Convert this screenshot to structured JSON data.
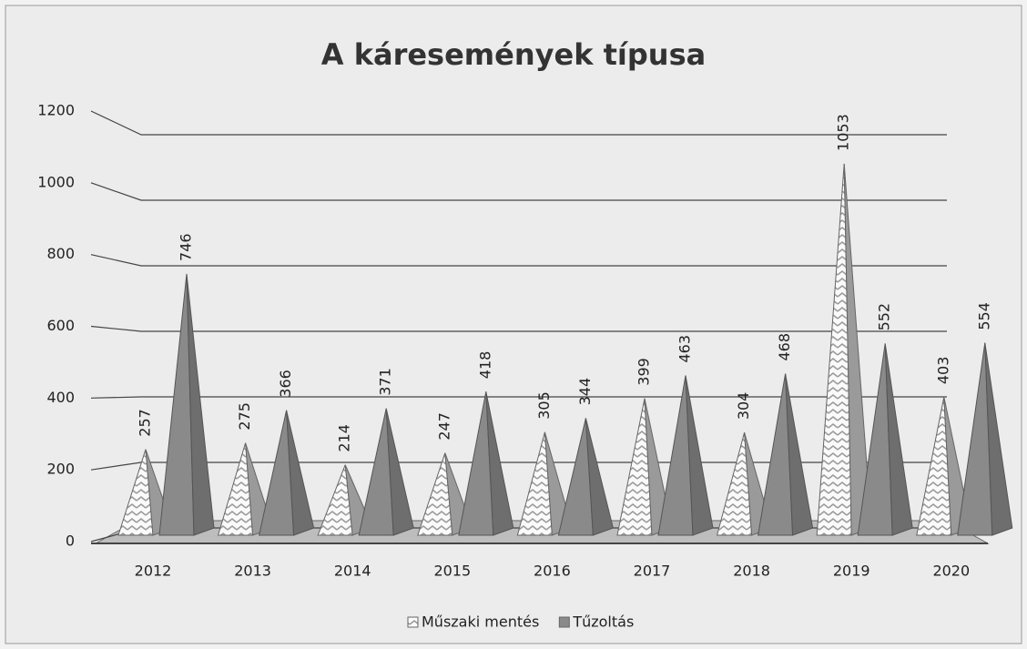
{
  "chart_data": {
    "type": "pyramid",
    "title": "A káresemények típusa",
    "categories": [
      "2012",
      "2013",
      "2014",
      "2015",
      "2016",
      "2017",
      "2018",
      "2019",
      "2020"
    ],
    "series": [
      {
        "name": "Műszaki mentés",
        "color": "#9a9a9a",
        "values": [
          257,
          275,
          214,
          247,
          305,
          399,
          304,
          1053,
          403
        ]
      },
      {
        "name": "Tűzoltás",
        "color": "#8a8a8a",
        "values": [
          746,
          366,
          371,
          418,
          344,
          463,
          468,
          552,
          554
        ]
      }
    ],
    "ylim": [
      0,
      1200
    ],
    "yticks": [
      0,
      200,
      400,
      600,
      800,
      1000,
      1200
    ],
    "grid": true,
    "legend": "bottom"
  }
}
